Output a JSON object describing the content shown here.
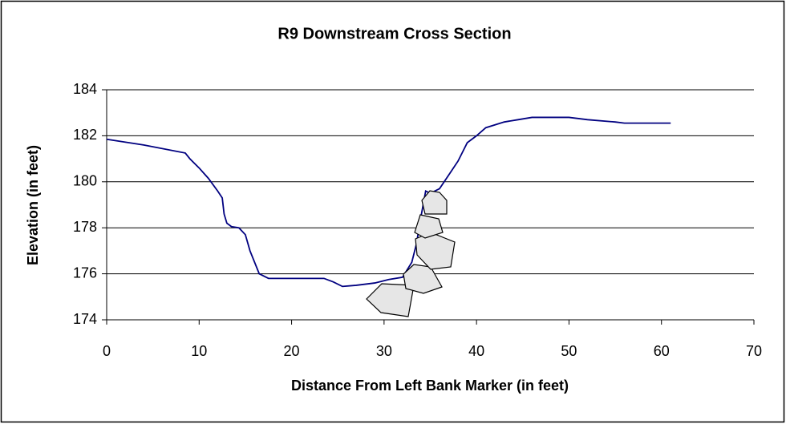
{
  "chart_data": {
    "type": "line",
    "title": "R9 Downstream Cross Section",
    "x_label": "Distance From Left Bank Marker (in feet)",
    "y_label": "Elevation (in feet)",
    "x": [
      0,
      4,
      8.5,
      9,
      10,
      11,
      12,
      12.5,
      12.7,
      13,
      13.5,
      14.3,
      15,
      15.5,
      16.5,
      17.5,
      20,
      23.5,
      24.5,
      25.5,
      27,
      29,
      30.5,
      32,
      33,
      33.5,
      34,
      34.5,
      35,
      36,
      37,
      38,
      39,
      40,
      41,
      43,
      44.5,
      46,
      50,
      52,
      55,
      56,
      61
    ],
    "values": [
      181.85,
      181.6,
      181.25,
      181.0,
      180.6,
      180.15,
      179.6,
      179.3,
      178.6,
      178.2,
      178.05,
      178.0,
      177.7,
      177.0,
      176.0,
      175.8,
      175.8,
      175.8,
      175.65,
      175.45,
      175.5,
      175.6,
      175.75,
      175.85,
      176.5,
      177.3,
      178.5,
      179.6,
      179.5,
      179.7,
      180.3,
      180.9,
      181.7,
      182.0,
      182.35,
      182.6,
      182.7,
      182.8,
      182.8,
      182.7,
      182.6,
      182.55,
      182.55
    ],
    "color": "#000080",
    "xlim": [
      0,
      70
    ],
    "xticks": [
      0,
      10,
      20,
      30,
      40,
      50,
      60,
      70
    ],
    "ylim": [
      174,
      184
    ],
    "yticks": [
      174,
      176,
      178,
      180,
      182,
      184
    ],
    "grid": true
  }
}
